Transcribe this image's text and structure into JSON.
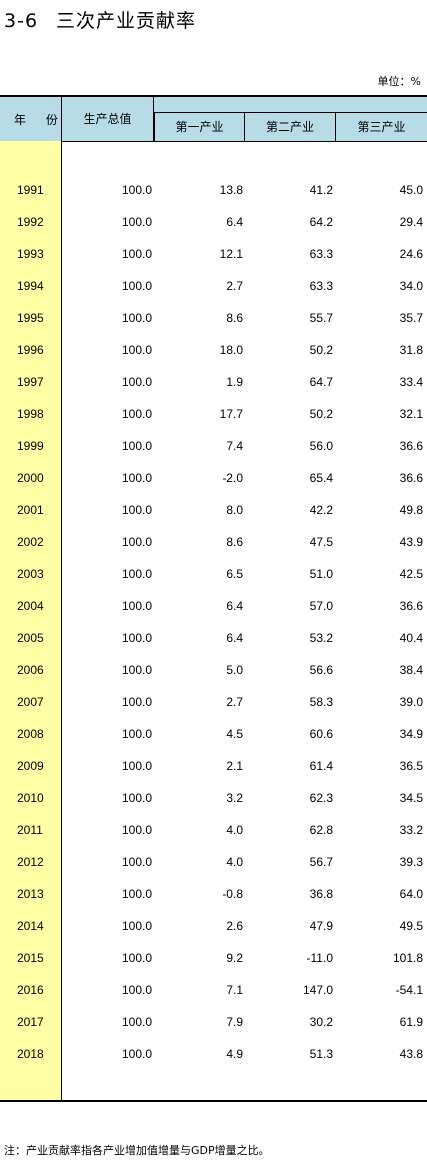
{
  "title": {
    "code": "3-6",
    "text": "三次产业贡献率"
  },
  "unit": "单位：%",
  "headers": {
    "year": "年 份",
    "gdp": "生产总值",
    "primary": "第一产业",
    "secondary": "第二产业",
    "tertiary": "第三产业"
  },
  "rows": [
    {
      "year": "1991",
      "gdp": "100.0",
      "p1": "13.8",
      "p2": "41.2",
      "p3": "45.0"
    },
    {
      "year": "1992",
      "gdp": "100.0",
      "p1": "6.4",
      "p2": "64.2",
      "p3": "29.4"
    },
    {
      "year": "1993",
      "gdp": "100.0",
      "p1": "12.1",
      "p2": "63.3",
      "p3": "24.6"
    },
    {
      "year": "1994",
      "gdp": "100.0",
      "p1": "2.7",
      "p2": "63.3",
      "p3": "34.0"
    },
    {
      "year": "1995",
      "gdp": "100.0",
      "p1": "8.6",
      "p2": "55.7",
      "p3": "35.7"
    },
    {
      "year": "1996",
      "gdp": "100.0",
      "p1": "18.0",
      "p2": "50.2",
      "p3": "31.8"
    },
    {
      "year": "1997",
      "gdp": "100.0",
      "p1": "1.9",
      "p2": "64.7",
      "p3": "33.4"
    },
    {
      "year": "1998",
      "gdp": "100.0",
      "p1": "17.7",
      "p2": "50.2",
      "p3": "32.1"
    },
    {
      "year": "1999",
      "gdp": "100.0",
      "p1": "7.4",
      "p2": "56.0",
      "p3": "36.6"
    },
    {
      "year": "2000",
      "gdp": "100.0",
      "p1": "-2.0",
      "p2": "65.4",
      "p3": "36.6"
    },
    {
      "year": "2001",
      "gdp": "100.0",
      "p1": "8.0",
      "p2": "42.2",
      "p3": "49.8"
    },
    {
      "year": "2002",
      "gdp": "100.0",
      "p1": "8.6",
      "p2": "47.5",
      "p3": "43.9"
    },
    {
      "year": "2003",
      "gdp": "100.0",
      "p1": "6.5",
      "p2": "51.0",
      "p3": "42.5"
    },
    {
      "year": "2004",
      "gdp": "100.0",
      "p1": "6.4",
      "p2": "57.0",
      "p3": "36.6"
    },
    {
      "year": "2005",
      "gdp": "100.0",
      "p1": "6.4",
      "p2": "53.2",
      "p3": "40.4"
    },
    {
      "year": "2006",
      "gdp": "100.0",
      "p1": "5.0",
      "p2": "56.6",
      "p3": "38.4"
    },
    {
      "year": "2007",
      "gdp": "100.0",
      "p1": "2.7",
      "p2": "58.3",
      "p3": "39.0"
    },
    {
      "year": "2008",
      "gdp": "100.0",
      "p1": "4.5",
      "p2": "60.6",
      "p3": "34.9"
    },
    {
      "year": "2009",
      "gdp": "100.0",
      "p1": "2.1",
      "p2": "61.4",
      "p3": "36.5"
    },
    {
      "year": "2010",
      "gdp": "100.0",
      "p1": "3.2",
      "p2": "62.3",
      "p3": "34.5"
    },
    {
      "year": "2011",
      "gdp": "100.0",
      "p1": "4.0",
      "p2": "62.8",
      "p3": "33.2"
    },
    {
      "year": "2012",
      "gdp": "100.0",
      "p1": "4.0",
      "p2": "56.7",
      "p3": "39.3"
    },
    {
      "year": "2013",
      "gdp": "100.0",
      "p1": "-0.8",
      "p2": "36.8",
      "p3": "64.0"
    },
    {
      "year": "2014",
      "gdp": "100.0",
      "p1": "2.6",
      "p2": "47.9",
      "p3": "49.5"
    },
    {
      "year": "2015",
      "gdp": "100.0",
      "p1": "9.2",
      "p2": "-11.0",
      "p3": "101.8"
    },
    {
      "year": "2016",
      "gdp": "100.0",
      "p1": "7.1",
      "p2": "147.0",
      "p3": "-54.1"
    },
    {
      "year": "2017",
      "gdp": "100.0",
      "p1": "7.9",
      "p2": "30.2",
      "p3": "61.9"
    },
    {
      "year": "2018",
      "gdp": "100.0",
      "p1": "4.9",
      "p2": "51.3",
      "p3": "43.8"
    }
  ],
  "note": "注：产业贡献率指各产业增加值增量与GDP增量之比。",
  "colors": {
    "header_bg": "#b7dce8",
    "year_col_bg": "#ffffa6"
  }
}
